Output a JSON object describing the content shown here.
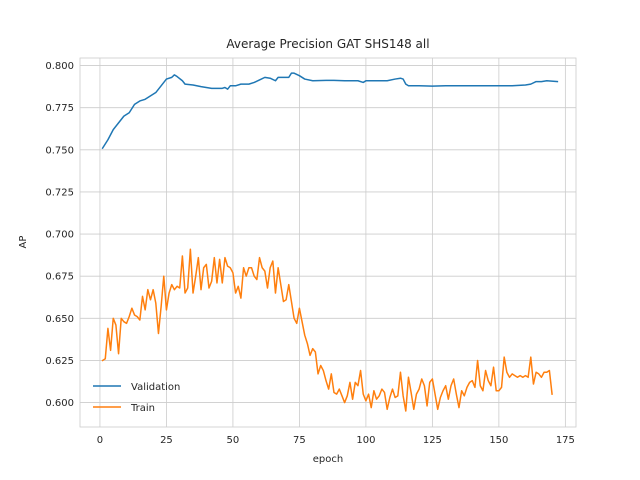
{
  "chart_data": {
    "type": "line",
    "title": "Average Precision GAT SHS148 all",
    "xlabel": "epoch",
    "ylabel": "AP",
    "xlim": [
      -7.5,
      179
    ],
    "ylim": [
      0.5855,
      0.8045
    ],
    "xticks": [
      0,
      25,
      50,
      75,
      100,
      125,
      150,
      175
    ],
    "yticks": [
      0.6,
      0.625,
      0.65,
      0.675,
      0.7,
      0.725,
      0.75,
      0.775,
      0.8
    ],
    "ytick_labels": [
      "0.600",
      "0.625",
      "0.650",
      "0.675",
      "0.700",
      "0.725",
      "0.750",
      "0.775",
      "0.800"
    ],
    "grid": true,
    "legend_position": "lower-left",
    "series": [
      {
        "name": "Validation",
        "color": "#1f77b4",
        "points": [
          [
            1,
            0.751
          ],
          [
            3,
            0.756
          ],
          [
            5,
            0.762
          ],
          [
            7,
            0.766
          ],
          [
            9,
            0.77
          ],
          [
            11,
            0.772
          ],
          [
            13,
            0.777
          ],
          [
            15,
            0.779
          ],
          [
            17,
            0.78
          ],
          [
            19,
            0.782
          ],
          [
            21,
            0.784
          ],
          [
            23,
            0.788
          ],
          [
            25,
            0.792
          ],
          [
            27,
            0.793
          ],
          [
            28,
            0.7945
          ],
          [
            29,
            0.7935
          ],
          [
            31,
            0.791
          ],
          [
            32,
            0.789
          ],
          [
            35,
            0.7885
          ],
          [
            38,
            0.7875
          ],
          [
            40,
            0.787
          ],
          [
            42,
            0.7865
          ],
          [
            44,
            0.7865
          ],
          [
            46,
            0.7865
          ],
          [
            47,
            0.787
          ],
          [
            48,
            0.786
          ],
          [
            49,
            0.788
          ],
          [
            51,
            0.788
          ],
          [
            53,
            0.789
          ],
          [
            56,
            0.789
          ],
          [
            58,
            0.79
          ],
          [
            60,
            0.7915
          ],
          [
            62,
            0.793
          ],
          [
            64,
            0.7925
          ],
          [
            66,
            0.791
          ],
          [
            67,
            0.793
          ],
          [
            69,
            0.793
          ],
          [
            71,
            0.793
          ],
          [
            72,
            0.7955
          ],
          [
            73,
            0.7955
          ],
          [
            75,
            0.794
          ],
          [
            77,
            0.792
          ],
          [
            80,
            0.791
          ],
          [
            85,
            0.7912
          ],
          [
            88,
            0.7912
          ],
          [
            92,
            0.791
          ],
          [
            97,
            0.791
          ],
          [
            99,
            0.79
          ],
          [
            100,
            0.791
          ],
          [
            105,
            0.791
          ],
          [
            108,
            0.791
          ],
          [
            111,
            0.792
          ],
          [
            113,
            0.7925
          ],
          [
            114,
            0.792
          ],
          [
            115,
            0.789
          ],
          [
            116,
            0.788
          ],
          [
            120,
            0.788
          ],
          [
            125,
            0.7878
          ],
          [
            130,
            0.788
          ],
          [
            135,
            0.788
          ],
          [
            140,
            0.788
          ],
          [
            145,
            0.788
          ],
          [
            150,
            0.788
          ],
          [
            155,
            0.788
          ],
          [
            160,
            0.7885
          ],
          [
            162,
            0.789
          ],
          [
            164,
            0.7905
          ],
          [
            166,
            0.7905
          ],
          [
            168,
            0.791
          ],
          [
            172,
            0.7905
          ]
        ]
      },
      {
        "name": "Train",
        "color": "#ff7f0e",
        "points": [
          [
            1,
            0.625
          ],
          [
            2,
            0.626
          ],
          [
            3,
            0.644
          ],
          [
            4,
            0.631
          ],
          [
            5,
            0.65
          ],
          [
            6,
            0.646
          ],
          [
            7,
            0.629
          ],
          [
            8,
            0.65
          ],
          [
            9,
            0.648
          ],
          [
            10,
            0.647
          ],
          [
            11,
            0.651
          ],
          [
            12,
            0.656
          ],
          [
            13,
            0.652
          ],
          [
            14,
            0.651
          ],
          [
            15,
            0.649
          ],
          [
            16,
            0.663
          ],
          [
            17,
            0.655
          ],
          [
            18,
            0.667
          ],
          [
            19,
            0.661
          ],
          [
            20,
            0.667
          ],
          [
            21,
            0.659
          ],
          [
            22,
            0.641
          ],
          [
            23,
            0.657
          ],
          [
            24,
            0.675
          ],
          [
            25,
            0.655
          ],
          [
            26,
            0.665
          ],
          [
            27,
            0.67
          ],
          [
            28,
            0.667
          ],
          [
            29,
            0.669
          ],
          [
            30,
            0.668
          ],
          [
            31,
            0.687
          ],
          [
            32,
            0.665
          ],
          [
            33,
            0.668
          ],
          [
            34,
            0.691
          ],
          [
            35,
            0.665
          ],
          [
            36,
            0.675
          ],
          [
            37,
            0.686
          ],
          [
            38,
            0.667
          ],
          [
            39,
            0.68
          ],
          [
            40,
            0.682
          ],
          [
            41,
            0.668
          ],
          [
            42,
            0.672
          ],
          [
            43,
            0.686
          ],
          [
            44,
            0.671
          ],
          [
            45,
            0.685
          ],
          [
            46,
            0.671
          ],
          [
            47,
            0.686
          ],
          [
            48,
            0.681
          ],
          [
            49,
            0.68
          ],
          [
            50,
            0.677
          ],
          [
            51,
            0.665
          ],
          [
            52,
            0.669
          ],
          [
            53,
            0.662
          ],
          [
            54,
            0.68
          ],
          [
            55,
            0.675
          ],
          [
            56,
            0.68
          ],
          [
            57,
            0.68
          ],
          [
            58,
            0.675
          ],
          [
            59,
            0.673
          ],
          [
            60,
            0.686
          ],
          [
            61,
            0.68
          ],
          [
            62,
            0.678
          ],
          [
            63,
            0.668
          ],
          [
            64,
            0.68
          ],
          [
            65,
            0.684
          ],
          [
            66,
            0.665
          ],
          [
            67,
            0.68
          ],
          [
            68,
            0.67
          ],
          [
            69,
            0.66
          ],
          [
            70,
            0.661
          ],
          [
            71,
            0.67
          ],
          [
            72,
            0.66
          ],
          [
            73,
            0.65
          ],
          [
            74,
            0.647
          ],
          [
            75,
            0.656
          ],
          [
            76,
            0.648
          ],
          [
            77,
            0.64
          ],
          [
            78,
            0.635
          ],
          [
            79,
            0.628
          ],
          [
            80,
            0.632
          ],
          [
            81,
            0.63
          ],
          [
            82,
            0.617
          ],
          [
            83,
            0.622
          ],
          [
            84,
            0.619
          ],
          [
            85,
            0.613
          ],
          [
            86,
            0.608
          ],
          [
            87,
            0.617
          ],
          [
            88,
            0.606
          ],
          [
            89,
            0.605
          ],
          [
            90,
            0.608
          ],
          [
            91,
            0.604
          ],
          [
            92,
            0.6
          ],
          [
            93,
            0.604
          ],
          [
            94,
            0.612
          ],
          [
            95,
            0.602
          ],
          [
            96,
            0.612
          ],
          [
            97,
            0.61
          ],
          [
            98,
            0.619
          ],
          [
            99,
            0.605
          ],
          [
            100,
            0.601
          ],
          [
            101,
            0.605
          ],
          [
            102,
            0.597
          ],
          [
            103,
            0.607
          ],
          [
            104,
            0.602
          ],
          [
            105,
            0.604
          ],
          [
            106,
            0.608
          ],
          [
            107,
            0.606
          ],
          [
            108,
            0.596
          ],
          [
            109,
            0.603
          ],
          [
            110,
            0.608
          ],
          [
            111,
            0.603
          ],
          [
            112,
            0.604
          ],
          [
            113,
            0.618
          ],
          [
            114,
            0.604
          ],
          [
            115,
            0.595
          ],
          [
            116,
            0.615
          ],
          [
            117,
            0.606
          ],
          [
            118,
            0.596
          ],
          [
            119,
            0.605
          ],
          [
            120,
            0.608
          ],
          [
            121,
            0.614
          ],
          [
            122,
            0.61
          ],
          [
            123,
            0.598
          ],
          [
            124,
            0.612
          ],
          [
            125,
            0.614
          ],
          [
            126,
            0.605
          ],
          [
            127,
            0.596
          ],
          [
            128,
            0.603
          ],
          [
            129,
            0.607
          ],
          [
            130,
            0.61
          ],
          [
            131,
            0.602
          ],
          [
            132,
            0.61
          ],
          [
            133,
            0.614
          ],
          [
            134,
            0.605
          ],
          [
            135,
            0.597
          ],
          [
            136,
            0.607
          ],
          [
            137,
            0.604
          ],
          [
            138,
            0.609
          ],
          [
            139,
            0.612
          ],
          [
            140,
            0.613
          ],
          [
            141,
            0.609
          ],
          [
            142,
            0.625
          ],
          [
            143,
            0.61
          ],
          [
            144,
            0.607
          ],
          [
            145,
            0.619
          ],
          [
            146,
            0.613
          ],
          [
            147,
            0.61
          ],
          [
            148,
            0.621
          ],
          [
            149,
            0.607
          ],
          [
            150,
            0.607
          ],
          [
            151,
            0.609
          ],
          [
            152,
            0.627
          ],
          [
            153,
            0.618
          ],
          [
            154,
            0.615
          ],
          [
            155,
            0.617
          ],
          [
            156,
            0.616
          ],
          [
            157,
            0.615
          ],
          [
            158,
            0.616
          ],
          [
            159,
            0.615
          ],
          [
            160,
            0.616
          ],
          [
            161,
            0.615
          ],
          [
            162,
            0.627
          ],
          [
            163,
            0.611
          ],
          [
            164,
            0.618
          ],
          [
            165,
            0.617
          ],
          [
            166,
            0.615
          ],
          [
            167,
            0.618
          ],
          [
            168,
            0.618
          ],
          [
            169,
            0.619
          ],
          [
            170,
            0.605
          ]
        ]
      }
    ]
  }
}
